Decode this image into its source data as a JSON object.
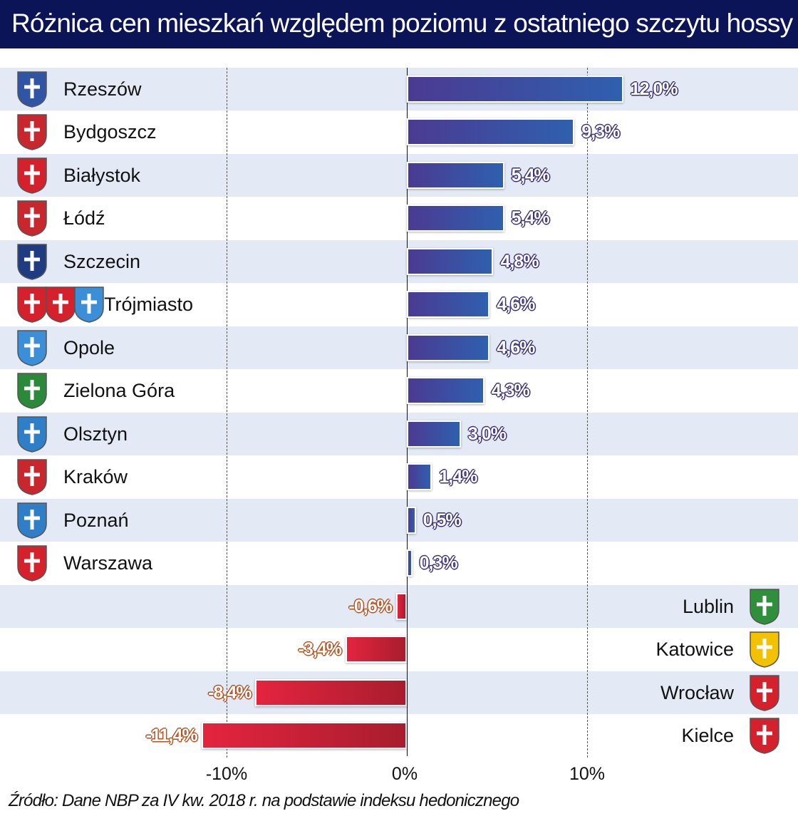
{
  "title": "Różnica cen mieszkań względem poziomu z ostatniego szczytu hossy",
  "source": "Źródło: Dane NBP za IV kw. 2018 r. na podstawie indeksu hedonicznego",
  "colors": {
    "title_bg": "#0b1456",
    "positive_bar": "#3d4da0",
    "negative_bar": "#d62038",
    "row_shade": "#e3eaf5"
  },
  "chart_data": {
    "type": "bar",
    "orientation": "horizontal",
    "categories": [
      "Rzeszów",
      "Bydgoszcz",
      "Białystok",
      "Łódź",
      "Szczecin",
      "Trójmiasto",
      "Opole",
      "Zielona Góra",
      "Olsztyn",
      "Kraków",
      "Poznań",
      "Warszawa",
      "Lublin",
      "Katowice",
      "Wrocław",
      "Kielce"
    ],
    "values": [
      12.0,
      9.3,
      5.4,
      5.4,
      4.8,
      4.6,
      4.6,
      4.3,
      3.0,
      1.4,
      0.5,
      0.3,
      -0.6,
      -3.4,
      -8.4,
      -11.4
    ],
    "value_labels": [
      "12,0%",
      "9,3%",
      "5,4%",
      "5,4%",
      "4,8%",
      "4,6%",
      "4,6%",
      "4,3%",
      "3,0%",
      "1,4%",
      "0,5%",
      "0,3%",
      "-0,6%",
      "-3,4%",
      "-8,4%",
      "-11,4%"
    ],
    "crest_colors": [
      [
        "#2f55a4"
      ],
      [
        "#c8272d"
      ],
      [
        "#d4212c"
      ],
      [
        "#c8272d"
      ],
      [
        "#1f3c80"
      ],
      [
        "#d4212c",
        "#d4212c",
        "#3a8fd8"
      ],
      [
        "#3a8fd8"
      ],
      [
        "#2a8a3a"
      ],
      [
        "#2f7fc8"
      ],
      [
        "#c8272d"
      ],
      [
        "#2f7fc8"
      ],
      [
        "#d4212c"
      ],
      [
        "#2f8f3a"
      ],
      [
        "#f2c200"
      ],
      [
        "#d4212c"
      ],
      [
        "#d4212c"
      ]
    ],
    "xlim": [
      -15,
      15
    ],
    "ticks": [
      -10,
      0,
      10
    ],
    "tick_labels": [
      "-10%",
      "0%",
      "10%"
    ],
    "grid": "dashed at -10% and 10%"
  }
}
